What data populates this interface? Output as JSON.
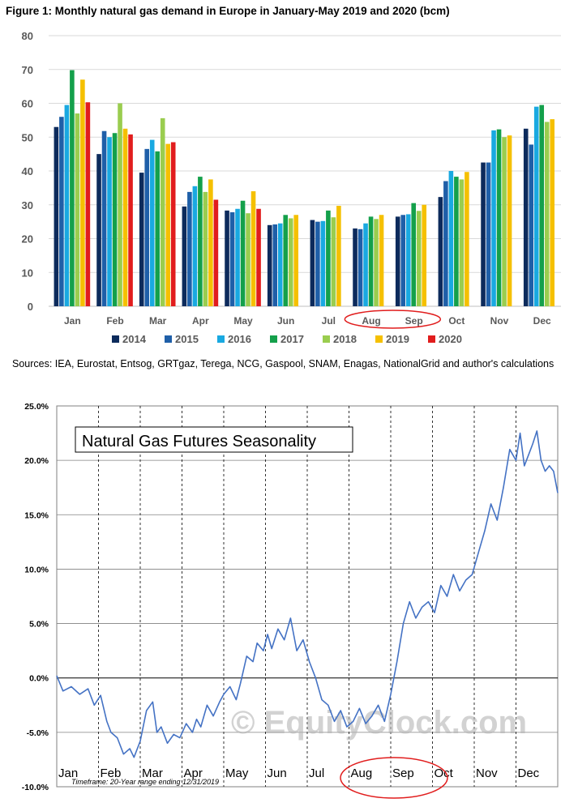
{
  "top": {
    "title": "Figure 1: Monthly natural gas demand in Europe in January-May 2019 and 2020 (bcm)"
  },
  "sources_text": "Sources: IEA, Eurostat, Entsog, GRTgaz, Terega, NCG, Gaspool, SNAM, Enagas, NationalGrid and author's calculations",
  "bottom": {
    "title": "Natural Gas Futures Seasonality",
    "timeframe": "Timeframe: 20-Year range ending 12/31/2019",
    "watermark": "© EquityClock.com"
  },
  "chart_data": [
    {
      "type": "bar",
      "title": "Figure 1: Monthly natural gas demand in Europe in January-May 2019 and 2020 (bcm)",
      "ylim": [
        0,
        80
      ],
      "yticks": [
        "0",
        "10",
        "20",
        "30",
        "40",
        "50",
        "60",
        "70",
        "80"
      ],
      "categories": [
        "Jan",
        "Feb",
        "Mar",
        "Apr",
        "May",
        "Jun",
        "Jul",
        "Aug",
        "Sep",
        "Oct",
        "Nov",
        "Dec"
      ],
      "highlight": [
        "Aug",
        "Sep"
      ],
      "series": [
        {
          "name": "2014",
          "color": "#0d2b5c",
          "values": [
            53,
            45,
            39.5,
            29.5,
            28.3,
            24,
            25.5,
            23,
            26.5,
            32.3,
            42.5,
            52.5
          ]
        },
        {
          "name": "2015",
          "color": "#1f5fa8",
          "values": [
            56,
            51.8,
            46.5,
            33.8,
            27.8,
            24.2,
            25,
            22.8,
            27,
            37,
            42.5,
            47.8
          ]
        },
        {
          "name": "2016",
          "color": "#19a9e1",
          "values": [
            59.5,
            50,
            49.2,
            35.5,
            28.8,
            24.5,
            25.2,
            24.5,
            27.2,
            40,
            52,
            59
          ]
        },
        {
          "name": "2017",
          "color": "#14a04b",
          "values": [
            69.8,
            51.2,
            45.8,
            38.3,
            31.2,
            27,
            28.3,
            26.5,
            30.5,
            38.3,
            52.3,
            59.5
          ]
        },
        {
          "name": "2018",
          "color": "#9acd4f",
          "values": [
            57,
            60,
            55.6,
            33.8,
            27.5,
            26,
            26.3,
            25.8,
            28.2,
            37.5,
            50,
            54.5
          ]
        },
        {
          "name": "2019",
          "color": "#f5c000",
          "values": [
            67,
            52.5,
            48,
            37.5,
            34,
            27,
            29.7,
            27,
            30,
            39.7,
            50.5,
            55.3
          ]
        },
        {
          "name": "2020",
          "color": "#e11d1d",
          "values": [
            60.3,
            50.8,
            48.5,
            31.5,
            28.8,
            null,
            null,
            null,
            null,
            null,
            null,
            null
          ]
        }
      ]
    },
    {
      "type": "line",
      "title": "Natural Gas Futures Seasonality",
      "ylim": [
        -10,
        25
      ],
      "yticks": [
        "-10.0%",
        "-5.0%",
        "0.0%",
        "5.0%",
        "10.0%",
        "15.0%",
        "20.0%",
        "25.0%"
      ],
      "months": [
        "Jan",
        "Feb",
        "Mar",
        "Apr",
        "May",
        "Jun",
        "Jul",
        "Aug",
        "Sep",
        "Oct",
        "Nov",
        "Dec"
      ],
      "highlight": [
        "Aug",
        "Sep"
      ],
      "series": [
        {
          "name": "Seasonality",
          "color": "#4472c4",
          "x": [
            0,
            0.15,
            0.35,
            0.55,
            0.75,
            0.9,
            1.05,
            1.2,
            1.3,
            1.45,
            1.6,
            1.75,
            1.85,
            2.0,
            2.15,
            2.3,
            2.4,
            2.5,
            2.65,
            2.8,
            2.95,
            3.1,
            3.25,
            3.35,
            3.45,
            3.6,
            3.75,
            3.9,
            4.0,
            4.15,
            4.3,
            4.4,
            4.55,
            4.7,
            4.8,
            4.95,
            5.05,
            5.15,
            5.3,
            5.45,
            5.6,
            5.75,
            5.9,
            6.05,
            6.2,
            6.35,
            6.5,
            6.65,
            6.8,
            6.95,
            7.1,
            7.25,
            7.4,
            7.55,
            7.7,
            7.85,
            8.0,
            8.15,
            8.3,
            8.45,
            8.6,
            8.75,
            8.9,
            9.05,
            9.2,
            9.35,
            9.5,
            9.65,
            9.8,
            9.95,
            10.1,
            10.25,
            10.4,
            10.55,
            10.7,
            10.85,
            11.0,
            11.1,
            11.2,
            11.3,
            11.4,
            11.5,
            11.6,
            11.7,
            11.8,
            11.9,
            12.0
          ],
          "y": [
            0.2,
            -1.2,
            -0.8,
            -1.5,
            -1.0,
            -2.5,
            -1.6,
            -4.0,
            -5.0,
            -5.5,
            -7.0,
            -6.5,
            -7.3,
            -5.8,
            -3.0,
            -2.2,
            -5.0,
            -4.5,
            -6.0,
            -5.2,
            -5.5,
            -4.2,
            -5.0,
            -3.8,
            -4.5,
            -2.5,
            -3.5,
            -2.2,
            -1.5,
            -0.8,
            -2.0,
            -0.5,
            2.0,
            1.5,
            3.2,
            2.5,
            4.0,
            2.7,
            4.5,
            3.5,
            5.5,
            2.5,
            3.5,
            1.5,
            0.0,
            -2.0,
            -2.5,
            -4.0,
            -3.0,
            -4.5,
            -4.0,
            -2.8,
            -4.2,
            -3.5,
            -2.5,
            -4.0,
            -1.5,
            1.5,
            5.0,
            7.0,
            5.5,
            6.5,
            7.0,
            6.0,
            8.5,
            7.5,
            9.5,
            8.0,
            9.0,
            9.5,
            11.5,
            13.5,
            16.0,
            14.5,
            17.5,
            21.0,
            20.0,
            22.5,
            19.5,
            20.5,
            21.5,
            22.7,
            20.0,
            19.0,
            19.5,
            19.0,
            17.0
          ]
        }
      ]
    }
  ]
}
